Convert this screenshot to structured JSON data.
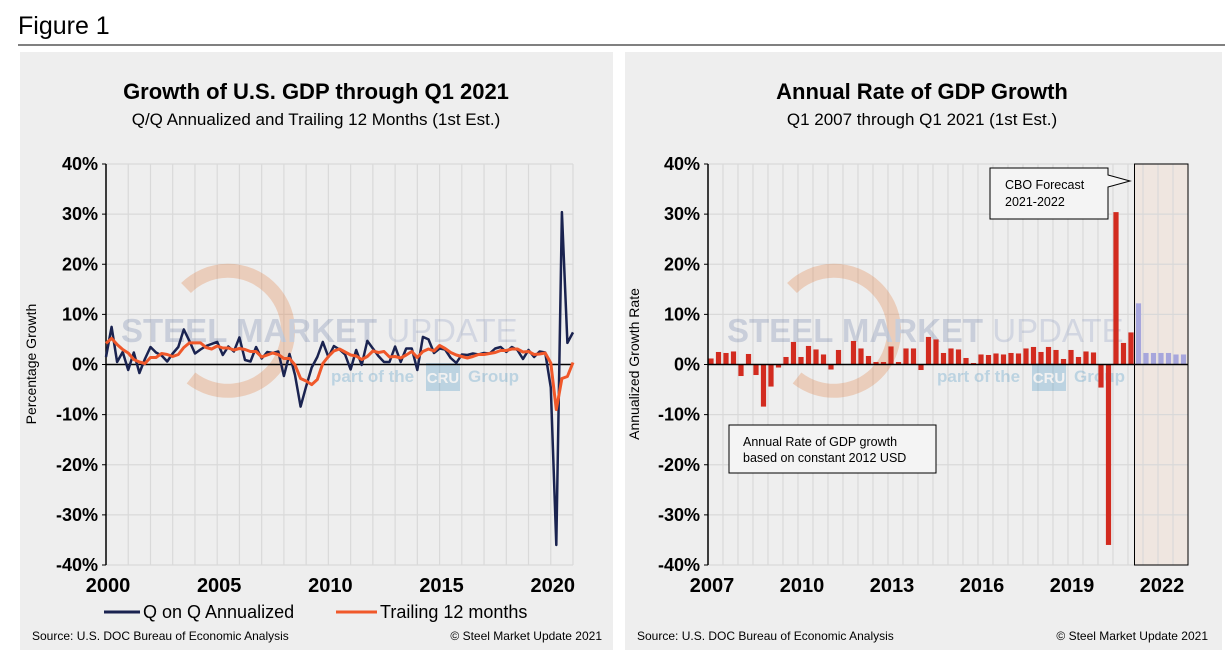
{
  "figure_label": "Figure 1",
  "watermark": {
    "line1_bold": "STEEL MARKET",
    "line1_light": "UPDATE",
    "line2": "part of the",
    "badge": "CRU",
    "line2_end": "Group"
  },
  "colors": {
    "qoq": "#1a2350",
    "trailing": "#f0582a",
    "bars": "#d22b1f",
    "forecast_bars": "#a7a6dc",
    "forecast_fill": "#efe6e0",
    "panel_bg": "#eeeeee",
    "grid": "#d9d9d9"
  },
  "chart_data": [
    {
      "type": "line",
      "title": "Growth of U.S. GDP through Q1 2021",
      "subtitle": "Q/Q Annualized and Trailing 12 Months (1st Est.)",
      "ylabel": "Percentage Growth",
      "xlabel": "",
      "ylim": [
        -40,
        40
      ],
      "yticks": [
        "40%",
        "30%",
        "20%",
        "10%",
        "0%",
        "-10%",
        "-20%",
        "-30%",
        "-40%"
      ],
      "xticks": [
        "2000",
        "2005",
        "2010",
        "2015",
        "2020"
      ],
      "x_start": "2000 Q1",
      "x_end": "2021 Q1",
      "grid": true,
      "legend": "bottom",
      "series": [
        {
          "name": "Q on Q Annualized",
          "values": [
            1.5,
            7.5,
            0.5,
            2.5,
            -1.1,
            2.4,
            -1.7,
            1.1,
            3.5,
            2.4,
            1.8,
            0.6,
            2.2,
            3.5,
            7.0,
            4.7,
            2.2,
            3.0,
            3.7,
            4.1,
            4.5,
            1.9,
            3.6,
            2.6,
            5.4,
            0.9,
            0.6,
            3.5,
            1.2,
            2.5,
            2.3,
            2.6,
            -2.3,
            2.1,
            -2.1,
            -8.4,
            -4.4,
            -0.6,
            1.5,
            4.5,
            1.5,
            3.7,
            3.0,
            2.0,
            -1.0,
            2.9,
            -0.1,
            4.7,
            3.2,
            1.7,
            0.5,
            0.5,
            3.6,
            0.5,
            3.2,
            3.2,
            -1.1,
            5.5,
            5.0,
            2.3,
            3.2,
            3.0,
            1.3,
            0.3,
            2.0,
            1.9,
            2.2,
            2.0,
            2.3,
            2.2,
            3.2,
            3.5,
            2.5,
            3.5,
            2.9,
            1.1,
            2.9,
            1.5,
            2.6,
            2.4,
            -4.6,
            -36.0,
            30.4,
            4.3,
            6.4
          ]
        },
        {
          "name": "Trailing 12 months",
          "values": [
            4.2,
            5.2,
            4.0,
            3.0,
            2.3,
            1.0,
            0.5,
            0.2,
            1.4,
            1.4,
            2.2,
            2.0,
            1.6,
            2.0,
            3.4,
            4.3,
            4.3,
            4.3,
            3.4,
            3.1,
            3.7,
            3.3,
            3.3,
            2.9,
            3.2,
            3.0,
            2.6,
            2.6,
            1.5,
            1.9,
            2.3,
            2.0,
            1.2,
            1.2,
            -0.1,
            -2.8,
            -3.3,
            -4.0,
            -3.0,
            0.2,
            1.6,
            2.7,
            3.1,
            2.5,
            1.9,
            1.7,
            1.0,
            1.6,
            2.7,
            2.4,
            2.6,
            1.5,
            1.6,
            1.3,
            1.9,
            2.6,
            1.4,
            2.6,
            3.1,
            2.7,
            3.8,
            3.2,
            2.4,
            1.9,
            1.6,
            1.3,
            1.6,
            2.0,
            2.0,
            2.2,
            2.4,
            2.8,
            2.8,
            3.1,
            3.1,
            2.5,
            2.6,
            2.0,
            2.1,
            2.3,
            0.3,
            -9.0,
            -2.8,
            -2.4,
            0.4
          ]
        }
      ],
      "source": "Source: U.S. DOC Bureau of Economic Analysis",
      "copyright": "© Steel Market Update 2021"
    },
    {
      "type": "bar",
      "title": "Annual Rate of GDP Growth",
      "subtitle": "Q1 2007 through Q1 2021 (1st Est.)",
      "ylabel": "Annualized Growth Rate",
      "xlabel": "",
      "ylim": [
        -40,
        40
      ],
      "yticks": [
        "40%",
        "30%",
        "20%",
        "10%",
        "0%",
        "-10%",
        "-20%",
        "-30%",
        "-40%"
      ],
      "xticks": [
        "2007",
        "2010",
        "2013",
        "2016",
        "2019",
        "2022"
      ],
      "x_start": "2007 Q1",
      "x_end": "2022 Q4",
      "grid": true,
      "actual_values": [
        1.2,
        2.5,
        2.3,
        2.6,
        -2.3,
        2.1,
        -2.1,
        -8.4,
        -4.4,
        -0.6,
        1.5,
        4.5,
        1.5,
        3.7,
        3.0,
        2.0,
        -1.0,
        2.9,
        -0.1,
        4.7,
        3.2,
        1.7,
        0.5,
        0.5,
        3.6,
        0.5,
        3.2,
        3.2,
        -1.1,
        5.5,
        5.0,
        2.3,
        3.2,
        3.0,
        1.3,
        0.3,
        2.0,
        1.9,
        2.2,
        2.0,
        2.3,
        2.2,
        3.2,
        3.5,
        2.5,
        3.5,
        2.9,
        1.1,
        2.9,
        1.5,
        2.6,
        2.4,
        -4.6,
        -36.0,
        30.4,
        4.3,
        6.4
      ],
      "forecast_values": [
        12.2,
        2.3,
        2.3,
        2.3,
        2.3,
        2.0,
        2.0
      ],
      "forecast_label": [
        "CBO Forecast",
        "2021-2022"
      ],
      "annotation": [
        "Annual Rate of GDP growth",
        "based on constant 2012 USD"
      ],
      "source": "Source: U.S. DOC Bureau of Economic Analysis",
      "copyright": "© Steel Market Update 2021"
    }
  ]
}
